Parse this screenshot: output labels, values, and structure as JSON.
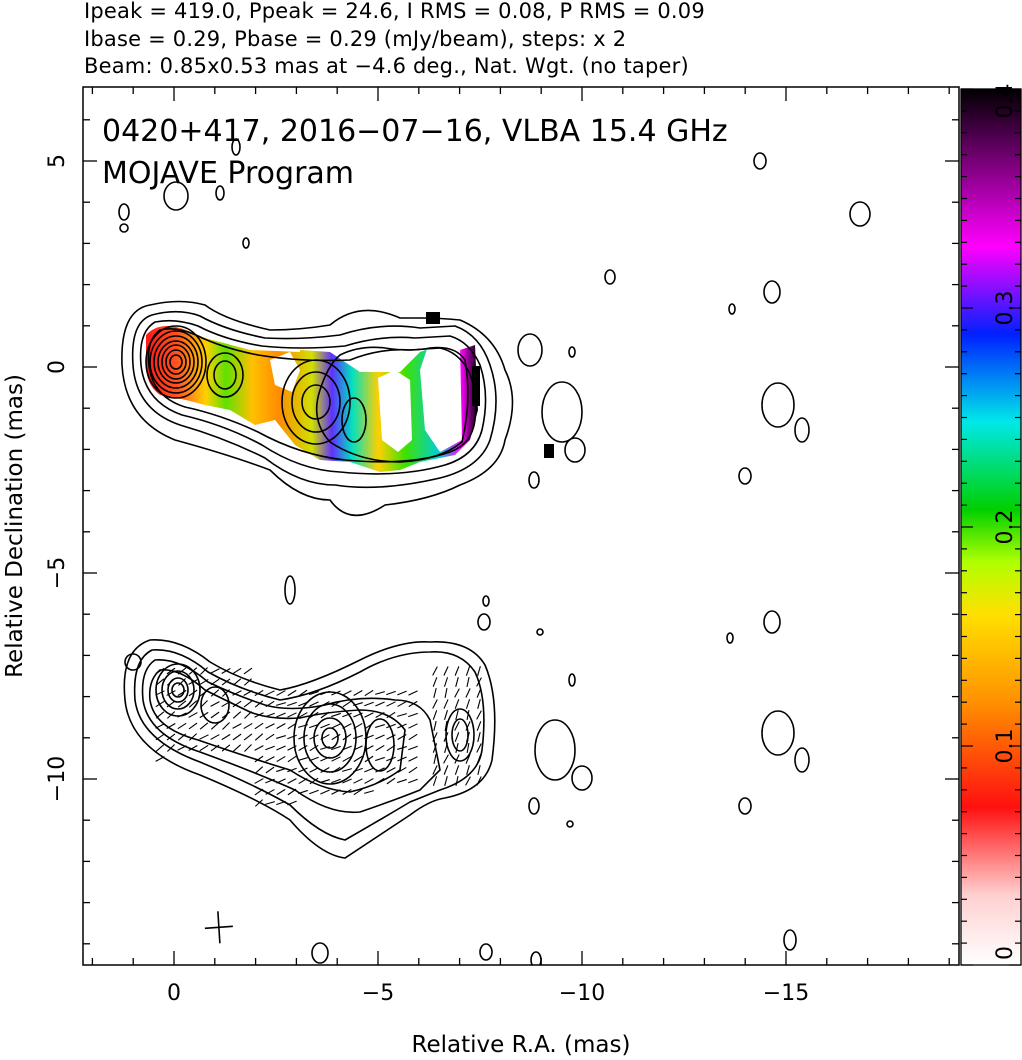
{
  "header": {
    "line1": "Ipeak = 419.0, Ppeak = 24.6, I RMS = 0.08, P RMS = 0.09",
    "line2": "Ibase = 0.29, Pbase = 0.29 (mJy/beam), steps: x 2",
    "line3": "Beam: 0.85x0.53 mas at −4.6 deg., Nat. Wgt. (no taper)"
  },
  "chart_data": {
    "type": "contour",
    "annotation_line1": "0420+417, 2016−07−16, VLBA 15.4 GHz",
    "annotation_line2": "MOJAVE Program",
    "xlabel": "Relative R.A. (mas)",
    "ylabel": "Relative Declination (mas)",
    "xlim": [
      2.2,
      -19.2
    ],
    "ylim": [
      -14.5,
      6.8
    ],
    "x_ticks": [
      0,
      -5,
      -10,
      -15
    ],
    "x_tick_labels": [
      "0",
      "−5",
      "−10",
      "−15"
    ],
    "y_ticks": [
      5,
      0,
      -5,
      -10
    ],
    "y_tick_labels": [
      "5",
      "0",
      "−5",
      "−10"
    ],
    "colorbar": {
      "range": [
        0,
        0.4
      ],
      "ticks": [
        0,
        0.1,
        0.2,
        0.3,
        0.4
      ],
      "tick_labels": [
        "0",
        "0.1",
        "0.2",
        "0.3",
        "0.4"
      ]
    },
    "upper_panel": {
      "core_position": [
        0,
        0
      ],
      "components": [
        {
          "x": 0.0,
          "y": 0.2
        },
        {
          "x": -1.3,
          "y": -0.3
        },
        {
          "x": -3.4,
          "y": -0.9
        },
        {
          "x": -7.2,
          "y": -0.5
        }
      ]
    },
    "lower_panel": {
      "offset_dec": -8.0,
      "components": [
        {
          "x": 0.1,
          "y": -7.9
        },
        {
          "x": -1.0,
          "y": -8.2
        },
        {
          "x": -3.9,
          "y": -9.2
        },
        {
          "x": -7.0,
          "y": -9.1
        }
      ]
    },
    "beam_position": [
      -1.1,
      -13.6
    ],
    "colors": {
      "contour": "#000000",
      "cmap": [
        "#ffffff",
        "#ff2020",
        "#ff8c00",
        "#ffff00",
        "#00d000",
        "#00e0e0",
        "#0040ff",
        "#ff00ff",
        "#000000"
      ]
    }
  }
}
